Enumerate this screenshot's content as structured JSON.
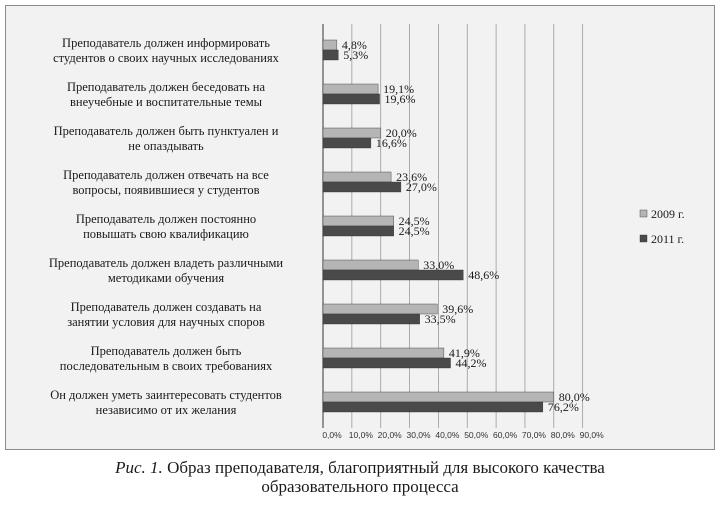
{
  "caption": {
    "figure_label": "Рис. 1.",
    "title_line1": "Образ преподавателя, благоприятный для высокого качества",
    "title_line2": "образовательного процесса"
  },
  "colors": {
    "series_2009": "#b5b5b5",
    "series_2011": "#4a4a4a",
    "grid": "#9a9a9a"
  },
  "chart_data": {
    "type": "bar",
    "orientation": "horizontal",
    "title": "",
    "xlabel": "",
    "ylabel": "",
    "xlim": [
      0,
      90
    ],
    "ticks": [
      "0,0%",
      "10,0%",
      "20,0%",
      "30,0%",
      "40,0%",
      "50,0%",
      "60,0%",
      "70,0%",
      "80,0%",
      "90,0%"
    ],
    "grid": true,
    "legend_position": "right",
    "categories": [
      [
        "Преподаватель должен информировать",
        "студентов  о своих научных исследованиях"
      ],
      [
        "Преподаватель должен беседовать на",
        "внеучебные и воспитательные темы"
      ],
      [
        "Преподаватель должен быть пунктуален и",
        "не опаздывать"
      ],
      [
        "Преподаватель должен отвечать на все",
        "вопросы, появившиеся у студентов"
      ],
      [
        "Преподаватель должен постоянно",
        "повышать свою квалификацию"
      ],
      [
        "Преподаватель должен владеть различными",
        "методиками обучения"
      ],
      [
        "Преподаватель должен создавать на",
        "занятии условия для научных споров"
      ],
      [
        "Преподаватель должен быть",
        "последовательным в своих требованиях"
      ],
      [
        "Он должен уметь заинтересовать студентов",
        "независимо от их желания"
      ]
    ],
    "series": [
      {
        "name": "2009 г.",
        "values": [
          4.8,
          19.1,
          20.0,
          23.6,
          24.5,
          33.0,
          39.6,
          41.9,
          80.0
        ],
        "labels": [
          "4,8%",
          "19,1%",
          "20,0%",
          "23,6%",
          "24,5%",
          "33,0%",
          "39,6%",
          "41,9%",
          "80,0%"
        ]
      },
      {
        "name": "2011 г.",
        "values": [
          5.3,
          19.6,
          16.6,
          27.0,
          24.5,
          48.6,
          33.5,
          44.2,
          76.2
        ],
        "labels": [
          "5,3%",
          "19,6%",
          "16,6%",
          "27,0%",
          "24,5%",
          "48,6%",
          "33,5%",
          "44,2%",
          "76,2%"
        ]
      }
    ]
  }
}
